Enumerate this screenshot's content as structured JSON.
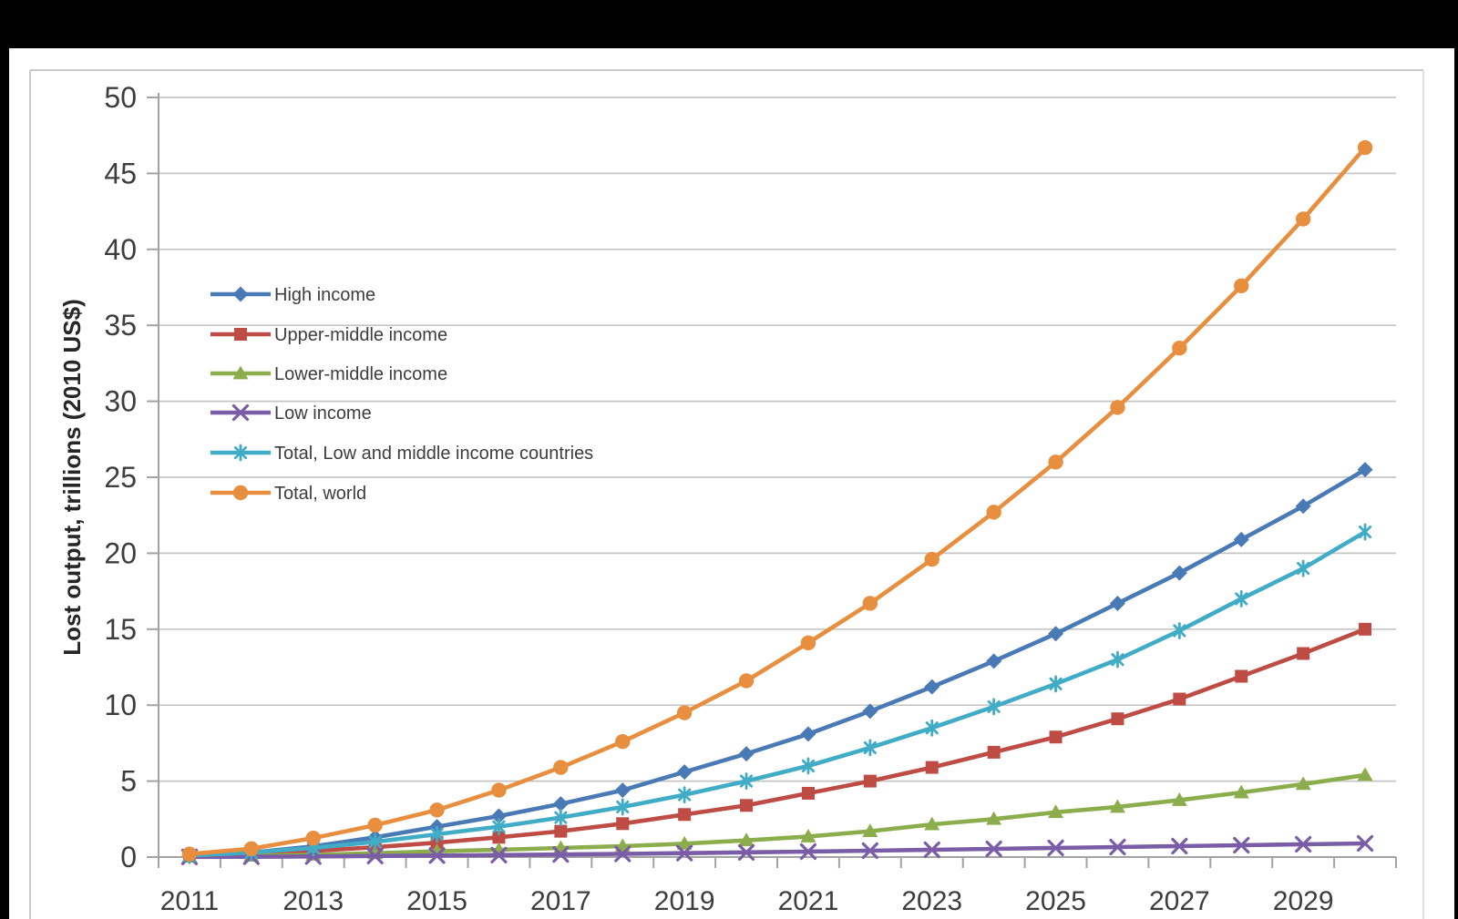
{
  "page": {
    "background_color": "#000000",
    "paper_color": "#ffffff",
    "border_color": "#c9c9c9"
  },
  "chart_data": {
    "type": "line",
    "title": "",
    "xlabel": "",
    "ylabel": "Lost output, trillions (2010 US$)",
    "x": [
      2011,
      2012,
      2013,
      2014,
      2015,
      2016,
      2017,
      2018,
      2019,
      2020,
      2021,
      2022,
      2023,
      2024,
      2025,
      2026,
      2027,
      2028,
      2029,
      2030
    ],
    "x_tick_labels": [
      "2011",
      "2013",
      "2015",
      "2017",
      "2019",
      "2021",
      "2023",
      "2025",
      "2027",
      "2029"
    ],
    "ylim": [
      0,
      50
    ],
    "yticks": [
      0,
      5,
      10,
      15,
      20,
      25,
      30,
      35,
      40,
      45,
      50
    ],
    "grid": "horizontal",
    "legend_position": "inside upper-left",
    "axis_color": "#a3a3a3",
    "grid_color": "#c6c6c6",
    "tick_label_color": "#3d3d3d",
    "series": [
      {
        "name": "High income",
        "marker": "diamond",
        "color": "#4a7ab5",
        "values": [
          0.1,
          0.3,
          0.7,
          1.3,
          2.0,
          2.7,
          3.5,
          4.4,
          5.6,
          6.8,
          8.1,
          9.6,
          11.2,
          12.9,
          14.7,
          16.7,
          18.7,
          20.9,
          23.1,
          25.5
        ]
      },
      {
        "name": "Upper-middle income",
        "marker": "square",
        "color": "#bf4b45",
        "values": [
          0.07,
          0.2,
          0.4,
          0.65,
          0.95,
          1.3,
          1.7,
          2.2,
          2.8,
          3.4,
          4.2,
          5.0,
          5.9,
          6.9,
          7.9,
          9.1,
          10.4,
          11.9,
          13.4,
          15.0
        ]
      },
      {
        "name": "Lower-middle income",
        "marker": "triangle",
        "color": "#8cad4b",
        "values": [
          0.03,
          0.08,
          0.15,
          0.25,
          0.38,
          0.48,
          0.6,
          0.72,
          0.88,
          1.1,
          1.35,
          1.7,
          2.15,
          2.5,
          2.95,
          3.3,
          3.75,
          4.25,
          4.8,
          5.4
        ]
      },
      {
        "name": "Low income",
        "marker": "x",
        "color": "#7a5da6",
        "values": [
          0.01,
          0.02,
          0.04,
          0.07,
          0.1,
          0.13,
          0.17,
          0.21,
          0.26,
          0.31,
          0.36,
          0.42,
          0.48,
          0.54,
          0.6,
          0.66,
          0.72,
          0.78,
          0.84,
          0.9
        ]
      },
      {
        "name": "Total, Low and middle income countries",
        "marker": "asterisk",
        "color": "#41acc6",
        "values": [
          0.1,
          0.3,
          0.6,
          1.0,
          1.5,
          2.0,
          2.6,
          3.3,
          4.1,
          5.0,
          6.0,
          7.2,
          8.5,
          9.9,
          11.4,
          13.0,
          14.9,
          17.0,
          19.0,
          21.4
        ]
      },
      {
        "name": "Total, world",
        "marker": "circle",
        "color": "#e78f3e",
        "values": [
          0.2,
          0.55,
          1.25,
          2.1,
          3.1,
          4.4,
          5.9,
          7.6,
          9.5,
          11.6,
          14.1,
          16.7,
          19.6,
          22.7,
          26.0,
          29.6,
          33.5,
          37.6,
          42.0,
          46.7
        ]
      }
    ]
  }
}
